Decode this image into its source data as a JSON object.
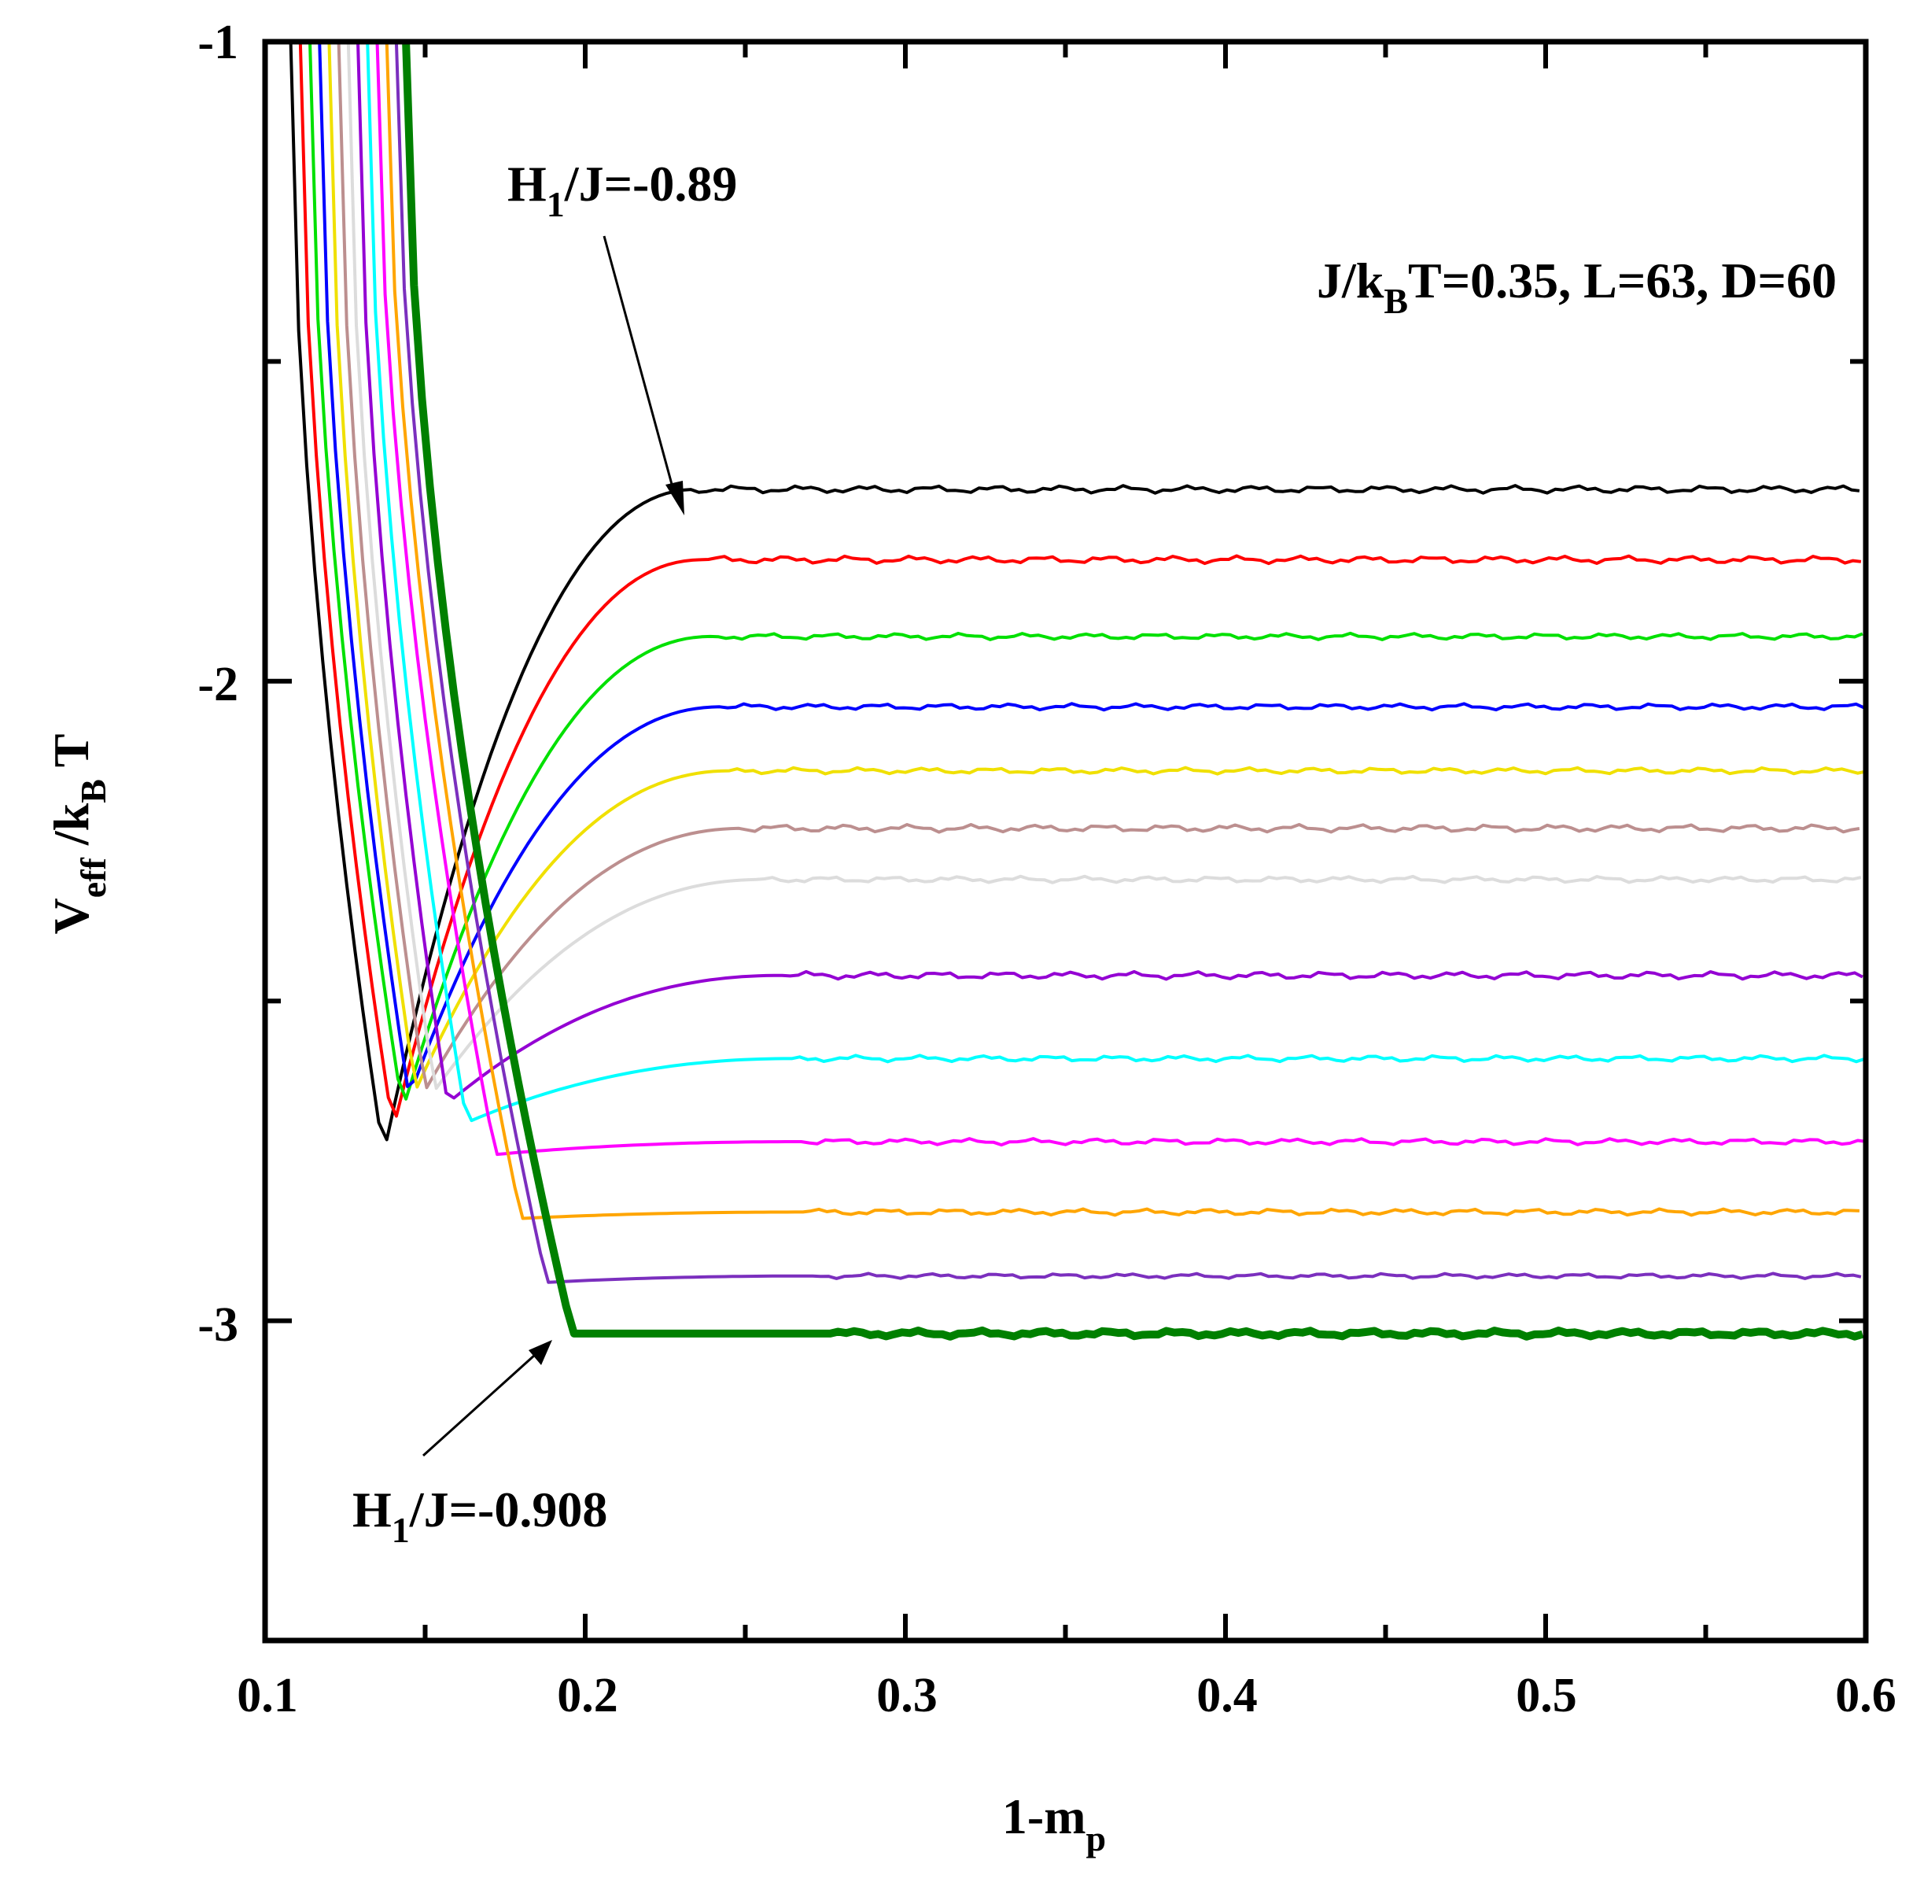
{
  "chart_data": {
    "type": "line",
    "title": "",
    "xlabel": {
      "main": "1-m",
      "sub": "p"
    },
    "ylabel": {
      "main": "V",
      "sub1": "eff",
      "mid": " /k",
      "sub2": "B",
      "end": " T"
    },
    "xlim": [
      0.1,
      0.6
    ],
    "ylim": [
      -3.5,
      -1.0
    ],
    "xticks": [
      0.1,
      0.2,
      0.3,
      0.4,
      0.5,
      0.6
    ],
    "xtick_labels": [
      "0.1",
      "0.2",
      "0.3",
      "0.4",
      "0.5",
      "0.6"
    ],
    "yticks": [
      -3.0,
      -2.0,
      -1.0
    ],
    "ytick_labels": [
      "-3",
      "-2",
      "-1"
    ],
    "grid": false,
    "legend": "none",
    "series": [
      {
        "name": "H1/J=-0.89",
        "color": "#000000",
        "x0": 0.108,
        "min": -2.74,
        "xmin": 0.137,
        "plateau": -1.7,
        "xp": 0.235,
        "noise": 0.006
      },
      {
        "name": "curve-2",
        "color": "#ff0000",
        "x0": 0.111,
        "min": -2.7,
        "xmin": 0.14,
        "plateau": -1.81,
        "xp": 0.237,
        "noise": 0.006
      },
      {
        "name": "curve-3",
        "color": "#00e000",
        "x0": 0.114,
        "min": -2.67,
        "xmin": 0.143,
        "plateau": -1.93,
        "xp": 0.24,
        "noise": 0.005
      },
      {
        "name": "curve-4",
        "color": "#0000ff",
        "x0": 0.117,
        "min": -2.65,
        "xmin": 0.145,
        "plateau": -2.04,
        "xp": 0.243,
        "noise": 0.005
      },
      {
        "name": "curve-5",
        "color": "#f0e000",
        "x0": 0.12,
        "min": -2.64,
        "xmin": 0.147,
        "plateau": -2.14,
        "xp": 0.246,
        "noise": 0.005
      },
      {
        "name": "curve-6",
        "color": "#bc8f8f",
        "x0": 0.123,
        "min": -2.64,
        "xmin": 0.15,
        "plateau": -2.23,
        "xp": 0.25,
        "noise": 0.006
      },
      {
        "name": "curve-7",
        "color": "#dcdcdc",
        "x0": 0.126,
        "min": -2.64,
        "xmin": 0.153,
        "plateau": -2.31,
        "xp": 0.256,
        "noise": 0.005
      },
      {
        "name": "curve-8",
        "color": "#9400d3",
        "x0": 0.129,
        "min": -2.66,
        "xmin": 0.157,
        "plateau": -2.46,
        "xp": 0.262,
        "noise": 0.006
      },
      {
        "name": "curve-9",
        "color": "#00ffff",
        "x0": 0.132,
        "min": -2.69,
        "xmin": 0.163,
        "plateau": -2.59,
        "xp": 0.266,
        "noise": 0.005
      },
      {
        "name": "curve-10",
        "color": "#ff00ff",
        "x0": 0.135,
        "min": -2.74,
        "xmin": 0.172,
        "plateau": -2.72,
        "xp": 0.268,
        "noise": 0.005
      },
      {
        "name": "curve-11",
        "color": "#ffa500",
        "x0": 0.138,
        "min": -2.84,
        "xmin": 0.18,
        "plateau": -2.83,
        "xp": 0.27,
        "noise": 0.005
      },
      {
        "name": "curve-12",
        "color": "#7b2fbe",
        "x0": 0.141,
        "min": -2.94,
        "xmin": 0.188,
        "plateau": -2.93,
        "xp": 0.272,
        "noise": 0.004
      },
      {
        "name": "H1/J=-0.908",
        "color": "#008000",
        "x0": 0.144,
        "min": -3.02,
        "xmin": 0.196,
        "plateau": -3.02,
        "xp": 0.278,
        "noise": 0.005,
        "thick": true
      }
    ]
  },
  "annotations": {
    "top": {
      "main": "H",
      "sub": "1",
      "rest": "/J=-0.89"
    },
    "bottom": {
      "main": "H",
      "sub": "1",
      "rest": "/J=-0.908"
    },
    "params": {
      "pre": "J/k",
      "sub": "B",
      "post": "T=0.35, L=63, D=60"
    }
  }
}
